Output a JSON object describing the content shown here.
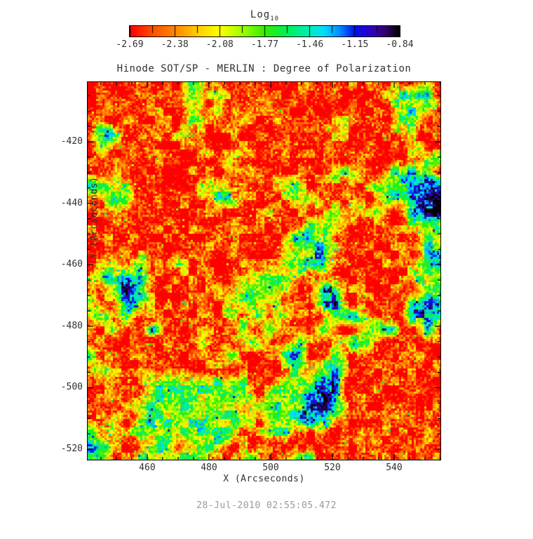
{
  "header": {
    "colorbar_title": "Log",
    "colorbar_title_sub": "10"
  },
  "footer": {
    "timestamp": "28-Jul-2010 02:55:05.472"
  },
  "chart_data": {
    "type": "heatmap",
    "title": "Hinode SOT/SP - MERLIN : Degree of Polarization",
    "xlabel": "X (Arcseconds)",
    "ylabel": "Y (Arcseconds)",
    "colorbar_label": "Log10",
    "colorbar_tick_labels": [
      "-2.69",
      "-2.38",
      "-2.08",
      "-1.77",
      "-1.46",
      "-1.15",
      "-0.84"
    ],
    "value_range": [
      -2.69,
      -0.84
    ],
    "x_ticks": [
      460,
      480,
      500,
      520,
      540
    ],
    "y_ticks": [
      -420,
      -440,
      -460,
      -480,
      -500,
      -520
    ],
    "x_range": [
      440.7,
      555.0
    ],
    "y_range": [
      -523.4,
      -400.6
    ],
    "minor_tick_step": 5,
    "legend_position": "top-colorbar",
    "grid": false,
    "colormap_stops": [
      {
        "t": 0.0,
        "color": "#ff0000"
      },
      {
        "t": 0.09,
        "color": "#ff5500"
      },
      {
        "t": 0.167,
        "color": "#ff8800"
      },
      {
        "t": 0.26,
        "color": "#ffd500"
      },
      {
        "t": 0.333,
        "color": "#ffff00"
      },
      {
        "t": 0.42,
        "color": "#99ff00"
      },
      {
        "t": 0.5,
        "color": "#33ee00"
      },
      {
        "t": 0.58,
        "color": "#00f055"
      },
      {
        "t": 0.667,
        "color": "#00eebb"
      },
      {
        "t": 0.72,
        "color": "#00ddff"
      },
      {
        "t": 0.78,
        "color": "#0088ff"
      },
      {
        "t": 0.833,
        "color": "#0011ee"
      },
      {
        "t": 0.9,
        "color": "#3300bb"
      },
      {
        "t": 0.95,
        "color": "#330066"
      },
      {
        "t": 1.0,
        "color": "#000000"
      }
    ],
    "grid_encoding": {
      "description": "Coarse 28x30 map of log10 degree-of-polarization; each character digit d of each row string maps to digit_values[d]; rows run top (y=-401) to bottom (y=-523), columns left (x=441) to right (x=555).",
      "digit_values": [
        -2.69,
        -2.485,
        -2.28,
        -2.075,
        -1.87,
        -1.665,
        -1.46,
        -1.255,
        -1.05,
        -0.845
      ]
    },
    "grid_rows": [
      "0101100041301001010010101040",
      "0100100051300100100100045651",
      "0010110050310010010010104540",
      "0101001041001001001131015400",
      "0660010310010100100310103100",
      "0510100001001010010100010410",
      "0101001001031001001001001044",
      "0110100010010100101451045650",
      "6534010014501014501010456889",
      "0165010101450101451010145899",
      "0101101001001031001434300789",
      "1011010010010001044310101454",
      "0110100100101000774100100145",
      "0101010001010003447301001055",
      "0150610401001004477100010157",
      "1647510010013444301000100445",
      "0158610100104443007711001044",
      "6017510010044340107700010677",
      "0615010101041515101475100767",
      "1050161001015041015101471060",
      "0100101014101501510147101001",
      "5101010001041014701510010110",
      "0510110100100101514700101001",
      "1011045445454104547701001010",
      "0110144544544045478700100101",
      "1001454454450445479701001010",
      "0150454545445054577000101001",
      "6041545454540145001011010010",
      "6610145045401000100100101101",
      "6510454454014501450100101010"
    ]
  }
}
